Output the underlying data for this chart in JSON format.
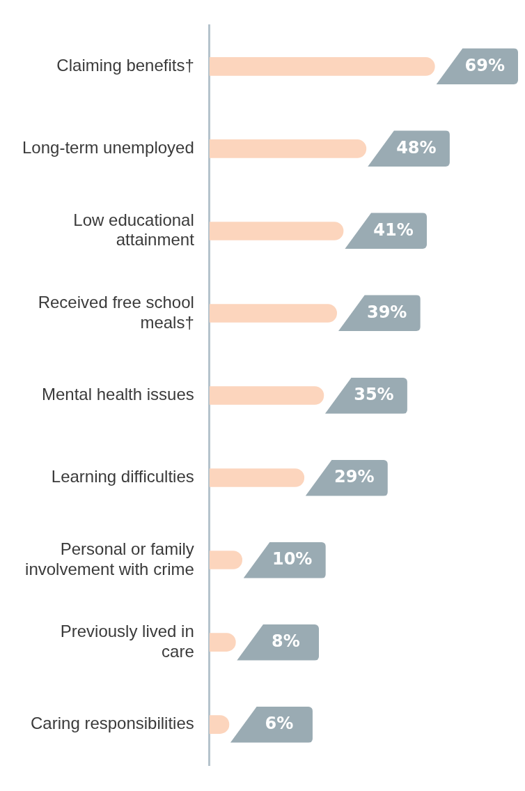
{
  "chart_data": {
    "type": "bar",
    "orientation": "horizontal",
    "categories": [
      "Claiming benefits†",
      "Long-term unemployed",
      "Low educational attainment",
      "Received free school meals†",
      "Mental health issues",
      "Learning difficulties",
      "Personal or family involvement with crime",
      "Previously lived in care",
      "Caring responsibilities"
    ],
    "values": [
      69,
      48,
      41,
      39,
      35,
      29,
      10,
      8,
      6
    ],
    "value_labels": [
      "69%",
      "48%",
      "41%",
      "39%",
      "35%",
      "29%",
      "10%",
      "8%",
      "6%"
    ],
    "color": "#fcd5bd",
    "grid": false,
    "legend": false
  }
}
